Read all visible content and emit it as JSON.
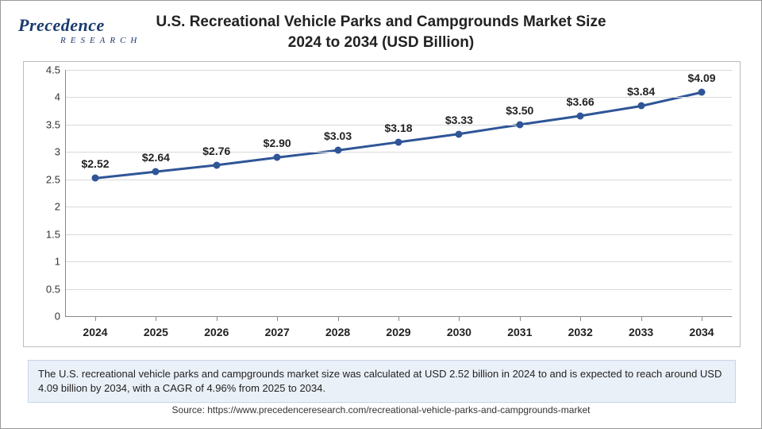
{
  "logo": {
    "text_main": "Precedence",
    "text_sub": "RESEARCH"
  },
  "title": "U.S. Recreational Vehicle Parks and Campgrounds Market Size 2024 to 2034 (USD Billion)",
  "chart": {
    "type": "line",
    "categories": [
      "2024",
      "2025",
      "2026",
      "2027",
      "2028",
      "2029",
      "2030",
      "2031",
      "2032",
      "2033",
      "2034"
    ],
    "values": [
      2.52,
      2.64,
      2.76,
      2.9,
      3.03,
      3.18,
      3.33,
      3.5,
      3.66,
      3.84,
      4.09
    ],
    "data_labels": [
      "$2.52",
      "$2.64",
      "$2.76",
      "$2.90",
      "$3.03",
      "$3.18",
      "$3.33",
      "$3.50",
      "$3.66",
      "$3.84",
      "$4.09"
    ],
    "ylim": [
      0,
      4.5
    ],
    "ytick_step": 0.5,
    "y_ticks": [
      "0",
      "0.5",
      "1",
      "1.5",
      "2",
      "2.5",
      "3",
      "3.5",
      "4",
      "4.5"
    ],
    "line_color": "#2f5597",
    "marker_color": "#2f5597",
    "line_width": 3,
    "marker_size": 9,
    "grid_color": "#d9d9d9",
    "axis_color": "#888888",
    "background_color": "#ffffff",
    "title_fontsize": 19,
    "label_fontsize": 14,
    "tick_fontsize": 13
  },
  "footer_text": "The U.S. recreational vehicle parks and campgrounds market size was calculated at USD 2.52 billion in 2024 to and is expected to reach around USD 4.09 billion by 2034, with a CAGR of 4.96% from 2025 to 2034.",
  "source_text": "Source: https://www.precedenceresearch.com/recreational-vehicle-parks-and-campgrounds-market"
}
